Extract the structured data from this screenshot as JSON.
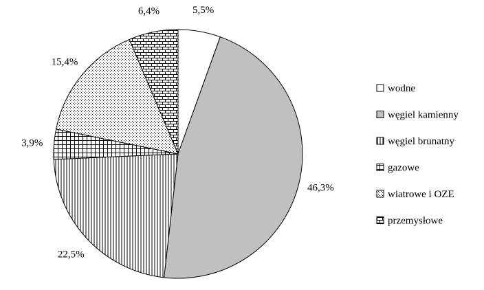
{
  "chart_data": {
    "type": "pie",
    "title": "",
    "legend_position": "right",
    "start_angle_deg": 0,
    "direction": "clockwise",
    "slices": [
      {
        "label": "wodne",
        "value": 5.5,
        "value_label": "5,5%",
        "fill": "white",
        "color": "#ffffff"
      },
      {
        "label": "węgiel kamienny",
        "value": 46.3,
        "value_label": "46,3%",
        "fill": "solid",
        "color": "#c0c0c0"
      },
      {
        "label": "węgiel brunatny",
        "value": 22.5,
        "value_label": "22,5%",
        "fill": "vertical-lines",
        "color": "#ffffff"
      },
      {
        "label": "gazowe",
        "value": 3.9,
        "value_label": "3,9%",
        "fill": "grid",
        "color": "#ffffff"
      },
      {
        "label": "wiatrowe i OZE",
        "value": 15.4,
        "value_label": "15,4%",
        "fill": "dots",
        "color": "#ffffff"
      },
      {
        "label": "przemysłowe",
        "value": 6.4,
        "value_label": "6,4%",
        "fill": "bricks",
        "color": "#ffffff"
      }
    ]
  }
}
